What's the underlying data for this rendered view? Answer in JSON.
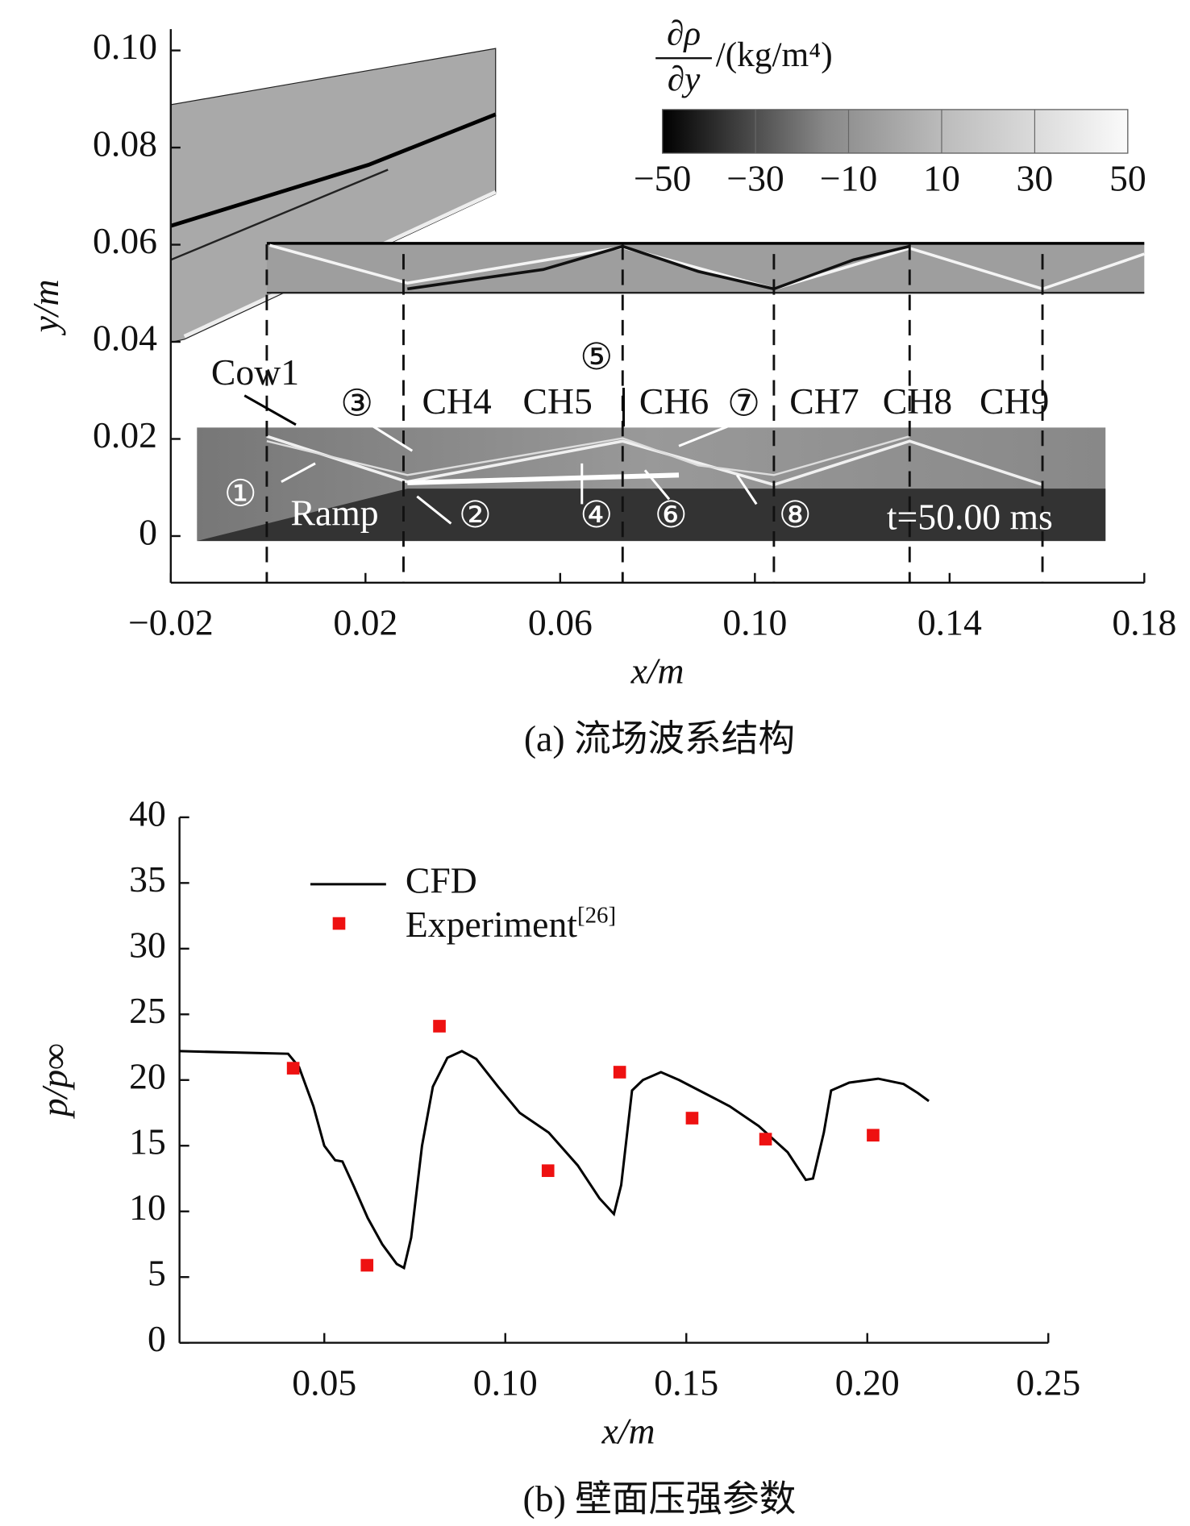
{
  "chart_data": [
    {
      "type": "field",
      "xlabel": "x/m",
      "ylabel": "y/m",
      "caption": "(a) 流场波系结构",
      "xlim": [
        -0.02,
        0.18
      ],
      "ylim": [
        -0.0096,
        0.1044
      ],
      "xticks": [
        {
          "value": -0.02,
          "label": "−0.02"
        },
        0.02,
        0.06,
        {
          "value": 0.1,
          "label": "0.10"
        },
        0.14,
        0.18
      ],
      "yticks": [
        0,
        0.02,
        0.04,
        0.06,
        0.08,
        {
          "value": 0.1,
          "label": "0.10"
        }
      ],
      "colorbar": {
        "numerator": "∂ρ",
        "denominator": "∂y",
        "unit": "/(kg/m⁴)",
        "range": [
          -50,
          50
        ],
        "ticks": [
          {
            "value": -50,
            "label": "−50"
          },
          {
            "value": -30,
            "label": "−30"
          },
          {
            "value": -10,
            "label": "−10"
          },
          10,
          30,
          50
        ]
      },
      "annotations": [
        "Cow1",
        "③",
        "CH4",
        "CH5",
        "⑤",
        "CH6",
        "⑦",
        "CH7",
        "CH8",
        "CH9",
        "①",
        "Ramp",
        "②",
        "④",
        "⑥",
        "⑧",
        "t=50.00 ms"
      ]
    },
    {
      "type": "line_scatter",
      "xlabel": "x/m",
      "ylabel": "p/p∞",
      "caption": "(b) 壁面压强参数",
      "xlim": [
        0.01,
        0.25
      ],
      "ylim": [
        0,
        40
      ],
      "xticks": [
        0.05,
        {
          "value": 0.1,
          "label": "0.10"
        },
        0.15,
        {
          "value": 0.2,
          "label": "0.20"
        },
        0.25
      ],
      "yticks": [
        0,
        5,
        10,
        15,
        20,
        25,
        30,
        35,
        40
      ],
      "series": [
        {
          "name": "CFD",
          "kind": "line",
          "color": "#000000",
          "x": [
            0.01,
            0.04,
            0.043,
            0.047,
            0.05,
            0.053,
            0.055,
            0.058,
            0.062,
            0.066,
            0.07,
            0.072,
            0.074,
            0.077,
            0.08,
            0.084,
            0.088,
            0.092,
            0.098,
            0.104,
            0.112,
            0.12,
            0.126,
            0.13,
            0.132,
            0.135,
            0.138,
            0.143,
            0.148,
            0.155,
            0.162,
            0.17,
            0.178,
            0.183,
            0.185,
            0.188,
            0.19,
            0.195,
            0.203,
            0.21,
            0.214,
            0.217
          ],
          "y": [
            22.2,
            22.0,
            21.0,
            18.0,
            15.0,
            13.9,
            13.8,
            12.0,
            9.5,
            7.5,
            6.0,
            5.7,
            8.0,
            15.0,
            19.5,
            21.7,
            22.2,
            21.6,
            19.5,
            17.5,
            16.0,
            13.5,
            11.0,
            9.8,
            12.0,
            19.2,
            20.0,
            20.6,
            20.0,
            19.0,
            18.0,
            16.5,
            14.5,
            12.4,
            12.5,
            16.0,
            19.2,
            19.8,
            20.1,
            19.7,
            19.0,
            18.4
          ]
        },
        {
          "name": "Experiment",
          "citation": "[26]",
          "kind": "scatter",
          "color": "#ee1111",
          "x": [
            0.0414,
            0.0618,
            0.0818,
            0.1118,
            0.1316,
            0.1516,
            0.1719,
            0.2016
          ],
          "y": [
            20.9,
            5.9,
            24.1,
            13.1,
            20.6,
            17.1,
            15.5,
            15.8
          ]
        }
      ]
    }
  ]
}
